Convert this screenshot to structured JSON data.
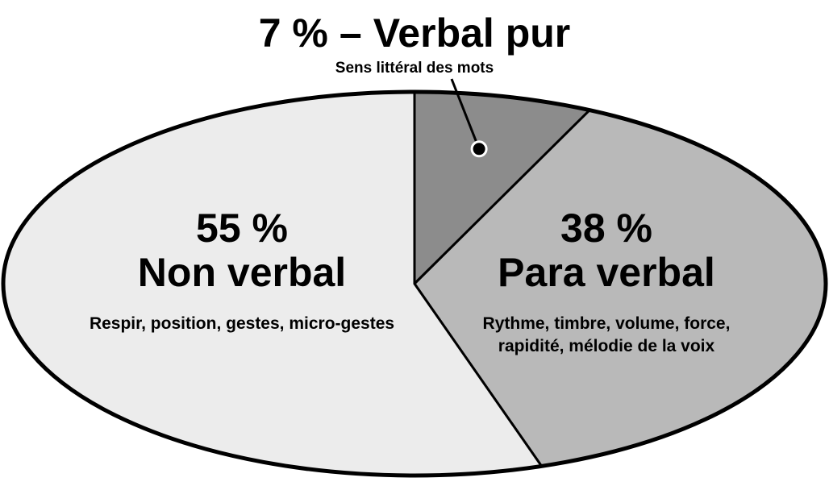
{
  "chart_data": {
    "type": "pie",
    "categories": [
      "Verbal pur",
      "Para verbal",
      "Non verbal"
    ],
    "values": [
      7,
      38,
      55
    ],
    "value_labels": [
      "7 %",
      "38 %",
      "55 %"
    ],
    "separator": "–",
    "descriptions": [
      [
        "Sens littéral des mots"
      ],
      [
        "Rythme, timbre, volume, force,",
        "rapidité, mélodie de la voix"
      ],
      [
        "Respir, position, gestes, micro-gestes"
      ]
    ],
    "colors": [
      "#8c8c8c",
      "#b9b9b9",
      "#ececec"
    ]
  }
}
